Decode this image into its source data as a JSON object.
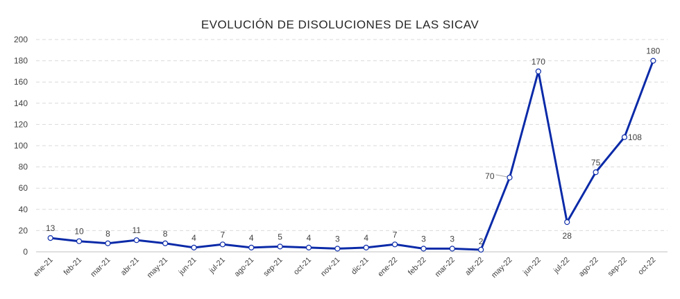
{
  "chart_data": {
    "type": "line",
    "title": "EVOLUCIÓN DE DISOLUCIONES DE LAS SICAV",
    "xlabel": "",
    "ylabel": "",
    "categories": [
      "ene-21",
      "feb-21",
      "mar-21",
      "abr-21",
      "may-21",
      "jun-21",
      "jul-21",
      "ago-21",
      "sep-21",
      "oct-21",
      "nov-21",
      "dic-21",
      "ene-22",
      "feb-22",
      "mar-22",
      "abr-22",
      "may-22",
      "jun-22",
      "jul-22",
      "ago-22",
      "sep-22",
      "oct-22"
    ],
    "series": [
      {
        "values": [
          13,
          10,
          8,
          11,
          8,
          4,
          7,
          4,
          5,
          4,
          3,
          4,
          7,
          3,
          3,
          2,
          70,
          170,
          28,
          75,
          108,
          180
        ]
      }
    ],
    "ylim": [
      0,
      200
    ],
    "yticks": [
      0,
      20,
      40,
      60,
      80,
      100,
      120,
      140,
      160,
      180,
      200
    ],
    "grid": true,
    "legend": "none",
    "data_labels": true,
    "colors": {
      "line": "#0a2aa8",
      "marker_fill": "#ffffff"
    }
  }
}
